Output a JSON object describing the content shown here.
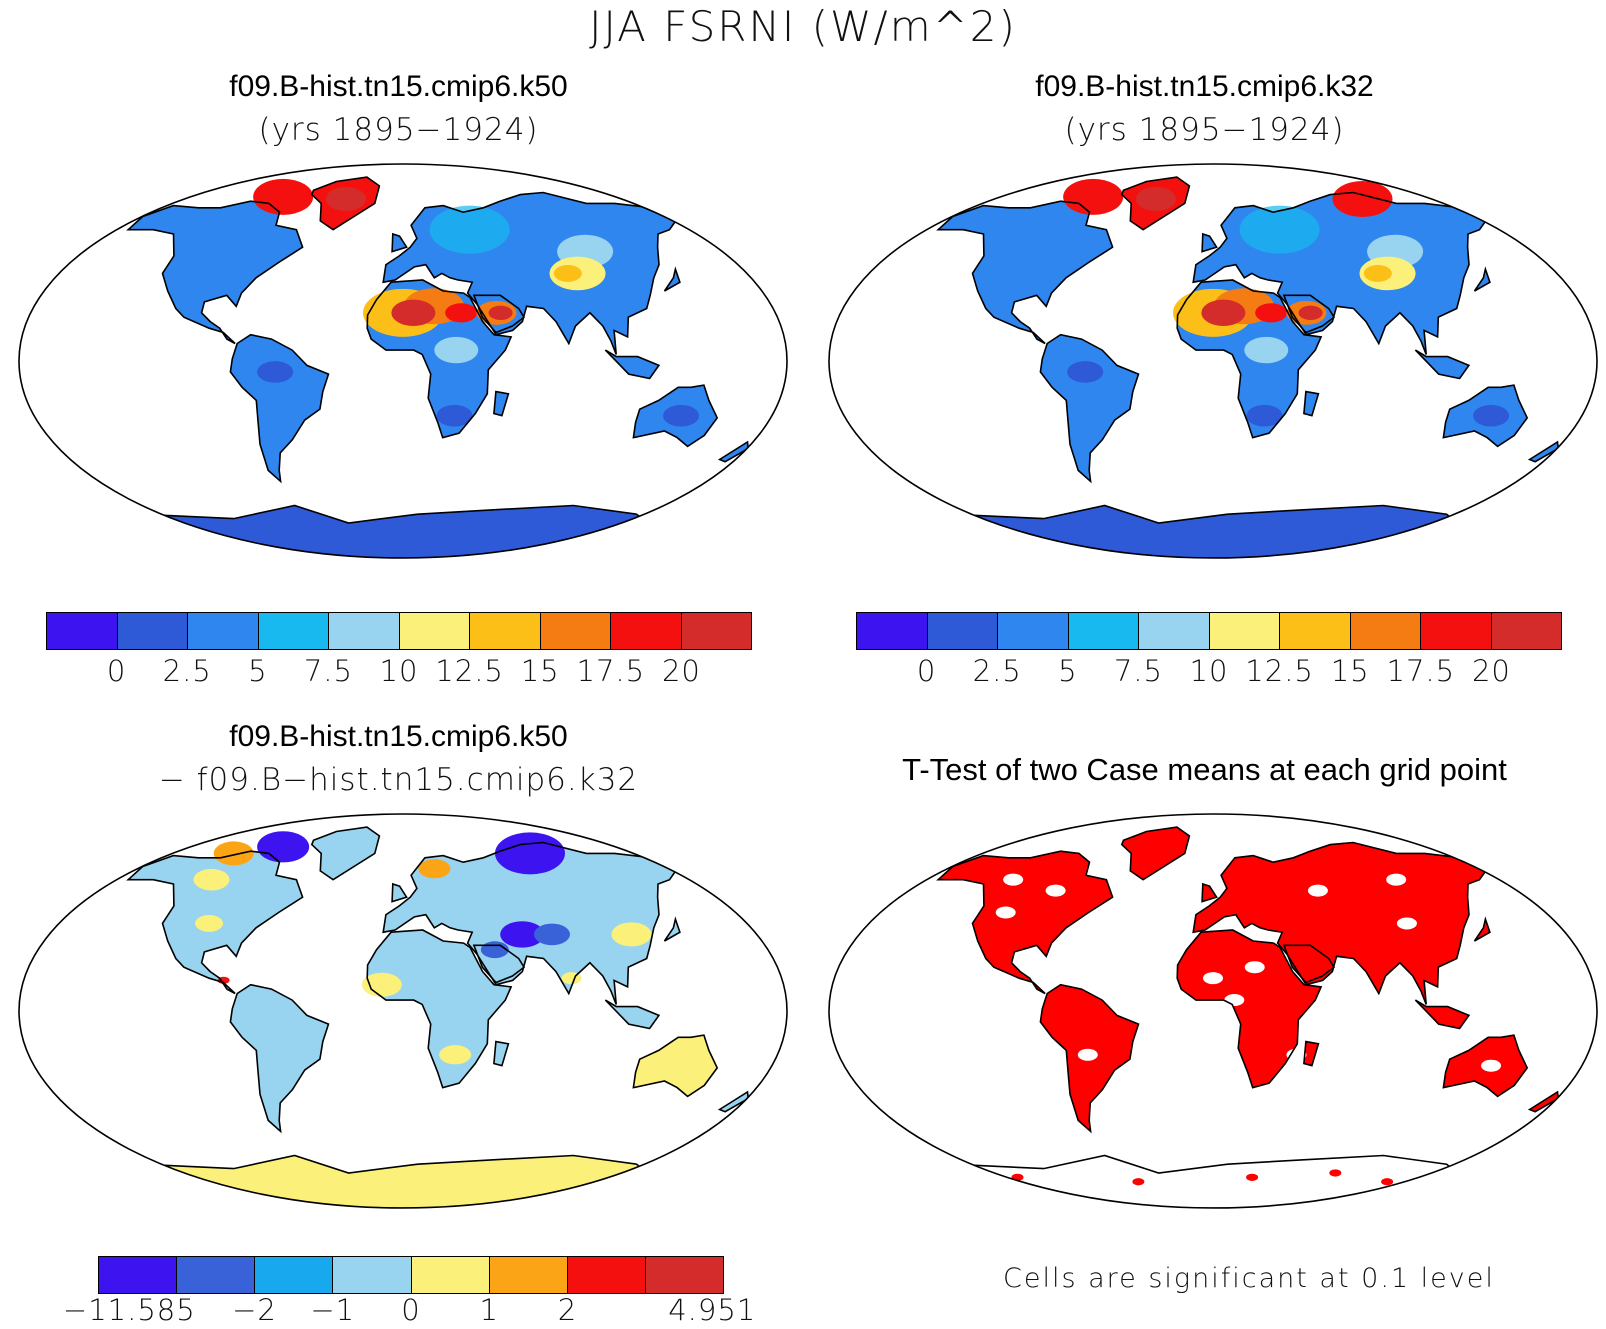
{
  "figure_title": "JJA FSRNI (W/m^2)",
  "panels": [
    {
      "id": "k50",
      "title": "f09.B-hist.tn15.cmip6.k50",
      "subtitle": "(yrs 1895−1924)",
      "kind": "mean"
    },
    {
      "id": "k32",
      "title": "f09.B-hist.tn15.cmip6.k32",
      "subtitle": "(yrs 1895−1924)",
      "kind": "mean"
    },
    {
      "id": "diff",
      "title": "f09.B-hist.tn15.cmip6.k50",
      "subtitle": "− f09.B−hist.tn15.cmip6.k32",
      "kind": "diff"
    },
    {
      "id": "ttest",
      "title": "T-Test of two Case means at each grid point",
      "subtitle": "",
      "kind": "ttest"
    }
  ],
  "colorbar_mean": {
    "colors": [
      "#3d14f0",
      "#2e5ad8",
      "#2f86ee",
      "#17b9ee",
      "#98d4ef",
      "#fbf17a",
      "#fbbf17",
      "#f57b13",
      "#f51010",
      "#d42b2b"
    ],
    "labels": [
      "0",
      "2.5",
      "5",
      "7.5",
      "10",
      "12.5",
      "15",
      "17.5",
      "20"
    ]
  },
  "colorbar_diff": {
    "colors": [
      "#3d14f0",
      "#3a62d8",
      "#17a8ee",
      "#98d4ef",
      "#fbf17a",
      "#fba516",
      "#f51010",
      "#d42b2b"
    ],
    "labels": [
      "−11.585",
      "−2",
      "−1",
      "0",
      "1",
      "2",
      "4.951"
    ]
  },
  "ttest_note": "Cells are significant at 0.1 level",
  "map_colors": {
    "ocean": "#ffffff",
    "coast": "#000000",
    "significant": "#ff0000"
  }
}
